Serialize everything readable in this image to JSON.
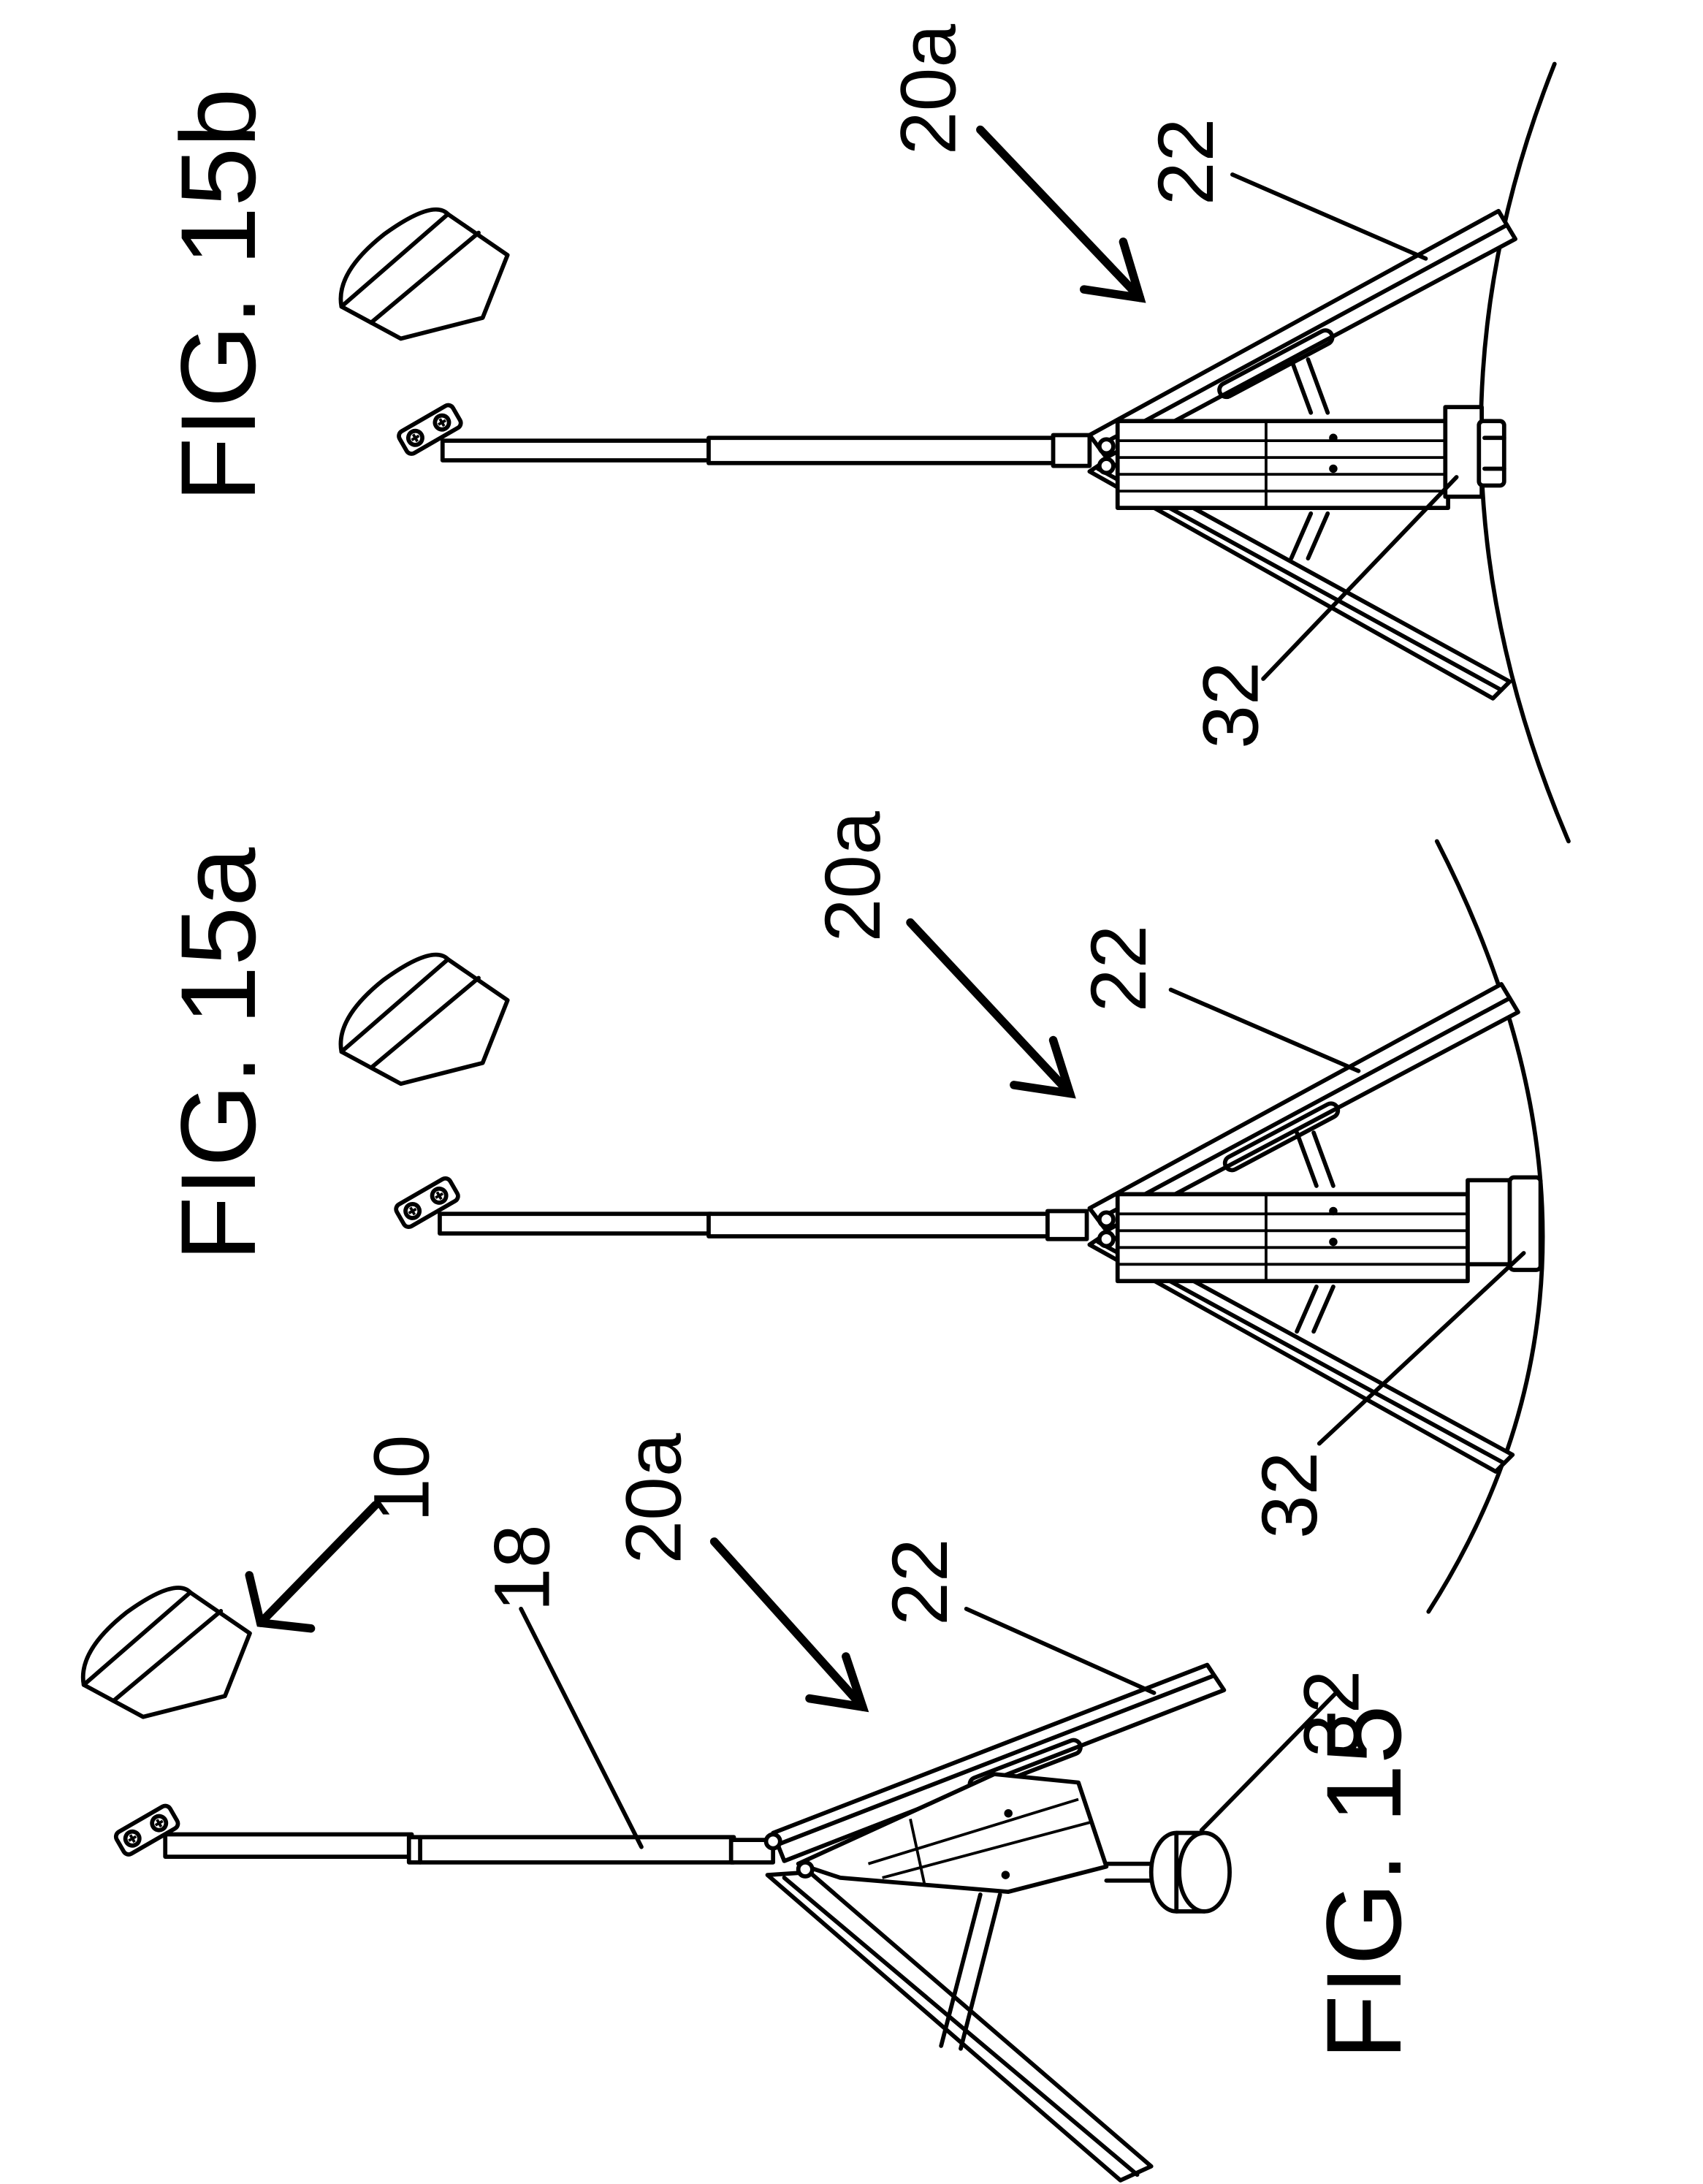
{
  "figures": [
    {
      "label": "FIG. 15",
      "refs": {
        "device": "10",
        "pole": "18",
        "tripod": "20a",
        "leg": "22",
        "weight": "32"
      }
    },
    {
      "label": "FIG. 15a",
      "refs": {
        "tripod": "20a",
        "leg": "22",
        "weight": "32"
      }
    },
    {
      "label": "FIG. 15b",
      "refs": {
        "tripod": "20a",
        "leg": "22",
        "weight": "32"
      }
    }
  ]
}
